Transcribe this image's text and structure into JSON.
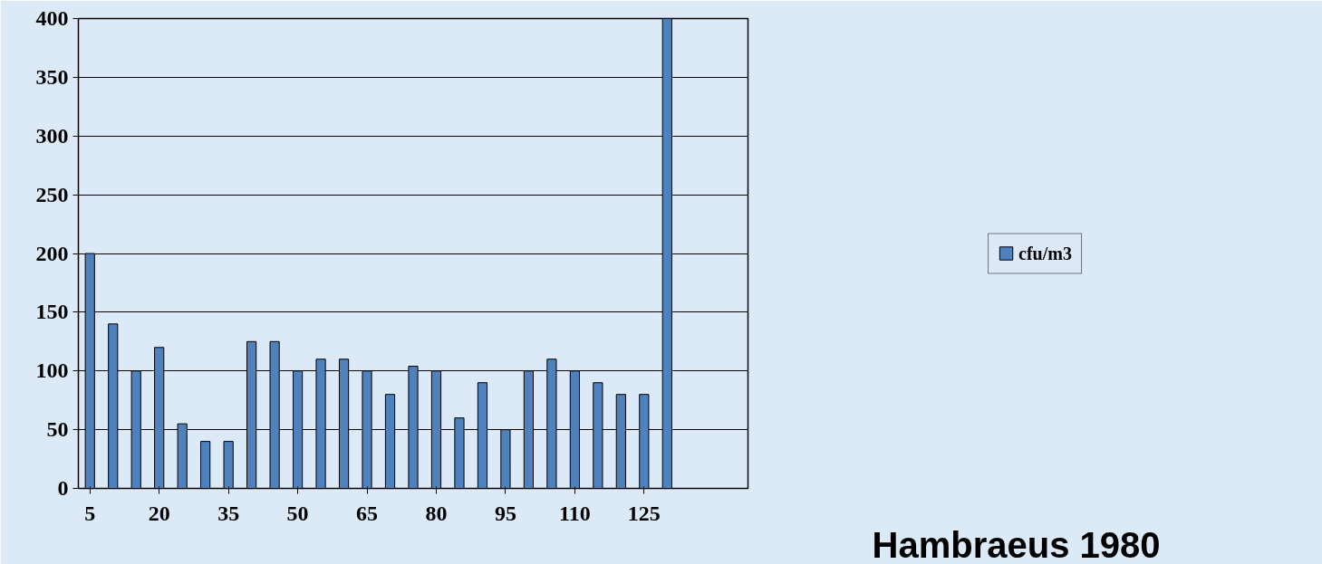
{
  "chart_data": {
    "type": "bar",
    "categories": [
      "5",
      null,
      null,
      "20",
      null,
      null,
      "35",
      null,
      null,
      "50",
      null,
      null,
      "65",
      null,
      null,
      "80",
      null,
      null,
      "95",
      null,
      null,
      "110",
      null,
      null,
      "125",
      null,
      null,
      null,
      null
    ],
    "series": [
      {
        "name": "cfu/m3",
        "color": "#4f81bd",
        "values": [
          200,
          140,
          100,
          120,
          55,
          40,
          40,
          125,
          125,
          100,
          110,
          110,
          100,
          80,
          104,
          100,
          60,
          90,
          50,
          100,
          110,
          100,
          90,
          80,
          80,
          400,
          null,
          null,
          null
        ]
      }
    ],
    "ylim": [
      0,
      400
    ],
    "yticks": [
      0,
      50,
      100,
      150,
      200,
      250,
      300,
      350,
      400
    ],
    "grid": "y",
    "legend": "right",
    "annotations": [
      "Hambraeus 1980"
    ]
  }
}
